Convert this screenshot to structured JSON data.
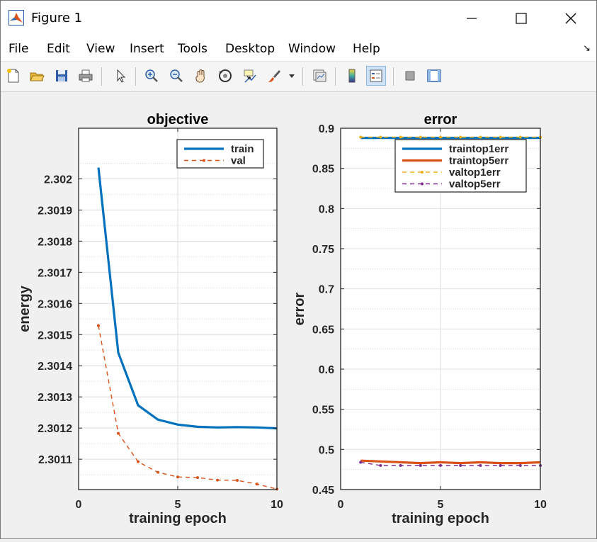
{
  "window": {
    "title": "Figure 1"
  },
  "menu": [
    "File",
    "Edit",
    "View",
    "Insert",
    "Tools",
    "Desktop",
    "Window",
    "Help"
  ],
  "toolbar": [
    "new-figure",
    "open-file",
    "save",
    "print",
    "select-pointer",
    "zoom-in",
    "zoom-out",
    "pan-hand",
    "rotate-3d",
    "data-cursor",
    "brush",
    "brush-dropdown",
    "link-plot",
    "insert-colorbar",
    "insert-legend",
    "hide-plot-tools",
    "show-plot-tools"
  ],
  "chart_data": [
    {
      "type": "line",
      "title": "objective",
      "xlabel": "training epoch",
      "ylabel": "energy",
      "xlim": [
        0,
        10
      ],
      "ylim": [
        2.3010025,
        2.3021625
      ],
      "xticks": [
        "0",
        "5",
        "10"
      ],
      "yticks": [
        {
          "value": 2.3011,
          "label": "2.3011"
        },
        {
          "value": 2.3012,
          "label": "2.3012"
        },
        {
          "value": 2.3013,
          "label": "2.3013"
        },
        {
          "value": 2.3014,
          "label": "2.3014"
        },
        {
          "value": 2.3015,
          "label": "2.3015"
        },
        {
          "value": 2.3016,
          "label": "2.3016"
        },
        {
          "value": 2.3017,
          "label": "2.3017"
        },
        {
          "value": 2.3018,
          "label": "2.3018"
        },
        {
          "value": 2.3019,
          "label": "2.3019"
        },
        {
          "value": 2.302,
          "label": "2.302"
        }
      ],
      "grid": true,
      "legend_position": "top-right",
      "x": [
        1,
        2,
        3,
        4,
        5,
        6,
        7,
        8,
        9,
        10
      ],
      "series": [
        {
          "name": "train",
          "color": "#0072bd",
          "style": "solid",
          "marker": "none",
          "values": [
            2.302036,
            2.301442,
            2.301273,
            2.301227,
            2.301211,
            2.301204,
            2.301202,
            2.301203,
            2.301202,
            2.301199
          ]
        },
        {
          "name": "val",
          "color": "#d95319",
          "style": "dashed",
          "marker": "dot",
          "values": [
            2.301529,
            2.301183,
            2.301092,
            2.301058,
            2.301043,
            2.301041,
            2.301033,
            2.301032,
            2.30102,
            2.301004
          ]
        }
      ]
    },
    {
      "type": "line",
      "title": "error",
      "xlabel": "training epoch",
      "ylabel": "error",
      "xlim": [
        0,
        10
      ],
      "ylim": [
        0.45,
        0.9
      ],
      "xticks": [
        "0",
        "5",
        "10"
      ],
      "yticks": [
        {
          "value": 0.45,
          "label": "0.45"
        },
        {
          "value": 0.5,
          "label": "0.5"
        },
        {
          "value": 0.55,
          "label": "0.55"
        },
        {
          "value": 0.6,
          "label": "0.6"
        },
        {
          "value": 0.65,
          "label": "0.65"
        },
        {
          "value": 0.7,
          "label": "0.7"
        },
        {
          "value": 0.75,
          "label": "0.75"
        },
        {
          "value": 0.8,
          "label": "0.8"
        },
        {
          "value": 0.85,
          "label": "0.85"
        },
        {
          "value": 0.9,
          "label": "0.9"
        }
      ],
      "grid": true,
      "legend_position": "top-right",
      "x": [
        1,
        2,
        3,
        4,
        5,
        6,
        7,
        8,
        9,
        10
      ],
      "series": [
        {
          "name": "traintop1err",
          "color": "#0072bd",
          "style": "solid",
          "marker": "none",
          "values": [
            0.888,
            0.888,
            0.888,
            0.888,
            0.888,
            0.888,
            0.888,
            0.888,
            0.888,
            0.888
          ]
        },
        {
          "name": "traintop5err",
          "color": "#d95319",
          "style": "solid",
          "marker": "none",
          "values": [
            0.486,
            0.485,
            0.484,
            0.483,
            0.484,
            0.483,
            0.484,
            0.483,
            0.483,
            0.484
          ]
        },
        {
          "name": "valtop1err",
          "color": "#edb120",
          "style": "dashed",
          "marker": "dot",
          "values": [
            0.889,
            0.889,
            0.889,
            0.889,
            0.889,
            0.889,
            0.889,
            0.889,
            0.889,
            0.889
          ]
        },
        {
          "name": "valtop5err",
          "color": "#7e2f8e",
          "style": "dashed",
          "marker": "dot",
          "values": [
            0.484,
            0.48,
            0.48,
            0.48,
            0.48,
            0.48,
            0.48,
            0.48,
            0.48,
            0.48
          ]
        }
      ]
    }
  ]
}
